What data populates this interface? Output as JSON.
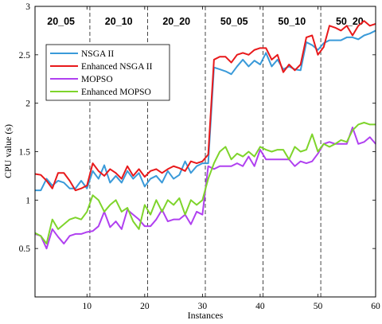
{
  "chart_data": {
    "type": "line",
    "xlabel": "Instances",
    "ylabel": "CPU value (s)",
    "xlim": [
      1,
      60
    ],
    "ylim": [
      0,
      3
    ],
    "xticks": [
      10,
      20,
      30,
      40,
      50,
      60
    ],
    "yticks": [
      0.5,
      1,
      1.5,
      2,
      2.5,
      3
    ],
    "ytick_labels": [
      "0.5",
      "1",
      "1.5",
      "2",
      "2.5",
      "3"
    ],
    "grid": false,
    "legend_position": "upper-left",
    "group_boundaries": [
      10.5,
      20.5,
      30.5,
      40.5,
      50.5
    ],
    "groups": [
      {
        "label": "20_05",
        "center": 5.5
      },
      {
        "label": "20_10",
        "center": 15.5
      },
      {
        "label": "20_20",
        "center": 25.5
      },
      {
        "label": "50_05",
        "center": 35.5
      },
      {
        "label": "50_10",
        "center": 45.5
      },
      {
        "label": "50_20",
        "center": 55.5
      }
    ],
    "x": [
      1,
      2,
      3,
      4,
      5,
      6,
      7,
      8,
      9,
      10,
      11,
      12,
      13,
      14,
      15,
      16,
      17,
      18,
      19,
      20,
      21,
      22,
      23,
      24,
      25,
      26,
      27,
      28,
      29,
      30,
      31,
      32,
      33,
      34,
      35,
      36,
      37,
      38,
      39,
      40,
      41,
      42,
      43,
      44,
      45,
      46,
      47,
      48,
      49,
      50,
      51,
      52,
      53,
      54,
      55,
      56,
      57,
      58,
      59,
      60
    ],
    "series": [
      {
        "name": "NSGA II",
        "color": "#3a9ad9",
        "values": [
          1.1,
          1.1,
          1.22,
          1.15,
          1.2,
          1.18,
          1.12,
          1.12,
          1.2,
          1.12,
          1.3,
          1.22,
          1.36,
          1.18,
          1.25,
          1.18,
          1.3,
          1.22,
          1.28,
          1.14,
          1.22,
          1.25,
          1.18,
          1.3,
          1.22,
          1.26,
          1.4,
          1.28,
          1.35,
          1.38,
          1.38,
          2.37,
          2.35,
          2.33,
          2.3,
          2.38,
          2.45,
          2.38,
          2.44,
          2.4,
          2.52,
          2.38,
          2.45,
          2.35,
          2.38,
          2.35,
          2.34,
          2.63,
          2.6,
          2.55,
          2.62,
          2.65,
          2.65,
          2.65,
          2.68,
          2.68,
          2.66,
          2.7,
          2.72,
          2.75
        ]
      },
      {
        "name": "Enhanced NSGA II",
        "color": "#e8191b",
        "values": [
          1.27,
          1.26,
          1.2,
          1.12,
          1.28,
          1.28,
          1.2,
          1.1,
          1.12,
          1.15,
          1.38,
          1.3,
          1.25,
          1.32,
          1.28,
          1.22,
          1.35,
          1.25,
          1.32,
          1.24,
          1.3,
          1.32,
          1.28,
          1.32,
          1.35,
          1.33,
          1.3,
          1.4,
          1.38,
          1.4,
          1.47,
          2.45,
          2.48,
          2.48,
          2.42,
          2.5,
          2.52,
          2.5,
          2.55,
          2.57,
          2.57,
          2.45,
          2.5,
          2.32,
          2.4,
          2.34,
          2.4,
          2.68,
          2.7,
          2.5,
          2.58,
          2.8,
          2.78,
          2.75,
          2.8,
          2.7,
          2.8,
          2.85,
          2.8,
          2.82
        ]
      },
      {
        "name": "MOPSO",
        "color": "#b040f0",
        "values": [
          0.65,
          0.63,
          0.5,
          0.7,
          0.62,
          0.55,
          0.63,
          0.65,
          0.65,
          0.67,
          0.68,
          0.73,
          0.88,
          0.72,
          0.78,
          0.7,
          0.9,
          0.85,
          0.8,
          0.73,
          0.73,
          0.8,
          0.9,
          0.78,
          0.8,
          0.8,
          0.85,
          0.75,
          0.88,
          0.85,
          1.35,
          1.32,
          1.35,
          1.35,
          1.35,
          1.38,
          1.35,
          1.45,
          1.35,
          1.52,
          1.42,
          1.42,
          1.42,
          1.42,
          1.42,
          1.35,
          1.4,
          1.38,
          1.4,
          1.48,
          1.58,
          1.6,
          1.58,
          1.58,
          1.58,
          1.75,
          1.58,
          1.6,
          1.65,
          1.58
        ]
      },
      {
        "name": "Enhanced MOPSO",
        "color": "#7ed42b",
        "values": [
          0.66,
          0.63,
          0.55,
          0.8,
          0.7,
          0.75,
          0.8,
          0.82,
          0.8,
          0.88,
          1.05,
          1.0,
          0.88,
          0.95,
          1.0,
          0.88,
          0.92,
          0.78,
          0.7,
          0.95,
          0.85,
          1.0,
          0.88,
          1.0,
          0.95,
          1.02,
          0.85,
          1.0,
          0.95,
          1.0,
          1.22,
          1.38,
          1.5,
          1.55,
          1.42,
          1.48,
          1.45,
          1.5,
          1.45,
          1.55,
          1.52,
          1.5,
          1.52,
          1.52,
          1.42,
          1.55,
          1.5,
          1.52,
          1.68,
          1.5,
          1.58,
          1.55,
          1.58,
          1.62,
          1.6,
          1.72,
          1.78,
          1.8,
          1.78,
          1.78
        ]
      }
    ]
  }
}
